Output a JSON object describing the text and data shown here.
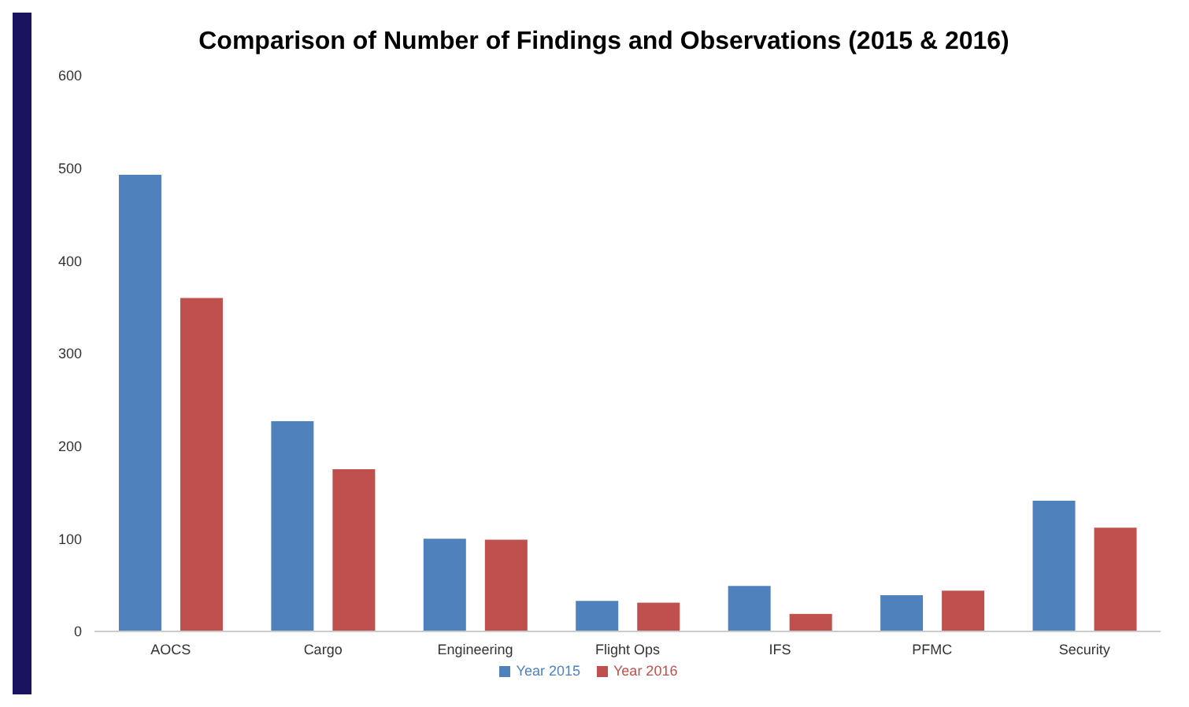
{
  "chart_data": {
    "type": "bar",
    "title": "Comparison of Number of Findings and Observations (2015 & 2016)",
    "categories": [
      "AOCS",
      "Cargo",
      "Engineering",
      "Flight Ops",
      "IFS",
      "PFMC",
      "Security"
    ],
    "series": [
      {
        "name": "Year 2015",
        "color": "#4f81bd",
        "values": [
          493,
          227,
          100,
          33,
          49,
          39,
          141
        ]
      },
      {
        "name": "Year 2016",
        "color": "#c0504d",
        "values": [
          360,
          175,
          99,
          31,
          19,
          44,
          112
        ]
      }
    ],
    "ylim": [
      0,
      600
    ],
    "yticks": [
      0,
      100,
      200,
      300,
      400,
      500,
      600
    ],
    "grid": false,
    "legend": "bottom"
  }
}
